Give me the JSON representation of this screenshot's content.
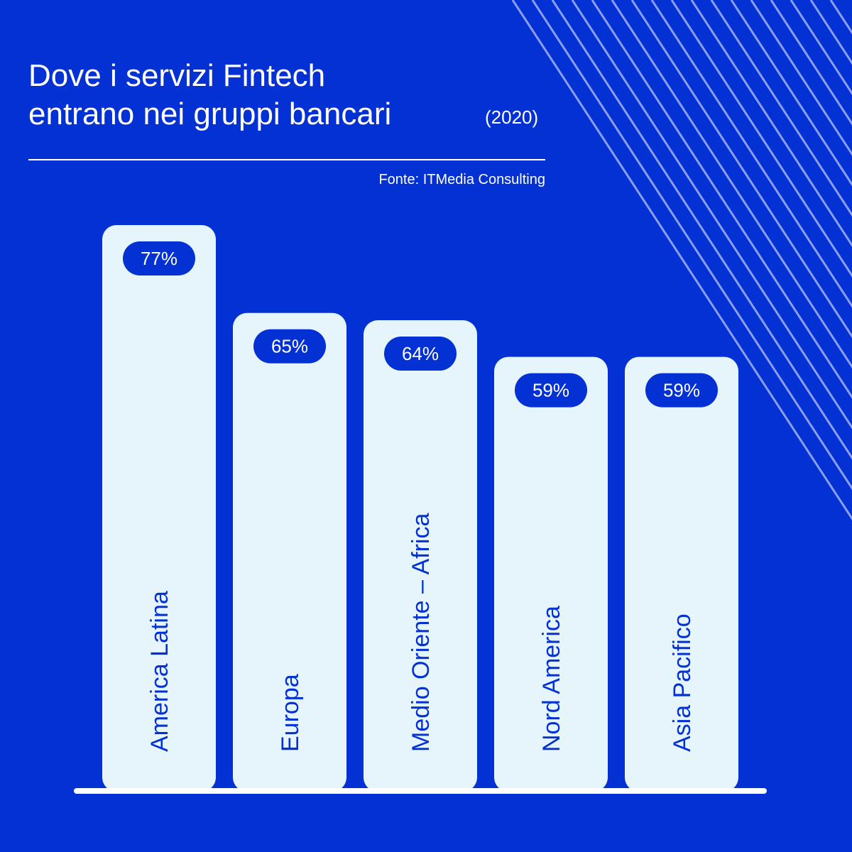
{
  "header": {
    "title_line1": "Dove i servizi Fintech",
    "title_line2": "entrano nei gruppi bancari",
    "year": "(2020)",
    "source": "Fonte: ITMedia Consulting"
  },
  "colors": {
    "background": "#0331d4",
    "bar": "#e6f5fb",
    "pill": "#0331d4",
    "text_on_bar": "#0331d4",
    "baseline": "#ffffff",
    "decor_lines": "#8b9ff0"
  },
  "chart_data": {
    "type": "bar",
    "title": "Dove i servizi Fintech entrano nei gruppi bancari",
    "categories": [
      "America Latina",
      "Europa",
      "Medio Oriente – Africa",
      "Nord America",
      "Asia Pacifico"
    ],
    "values": [
      77,
      65,
      64,
      59,
      59
    ],
    "value_labels": [
      "77%",
      "65%",
      "64%",
      "59%",
      "59%"
    ],
    "unit": "%",
    "ylim": [
      0,
      77
    ],
    "grid": false,
    "legend": "none"
  }
}
